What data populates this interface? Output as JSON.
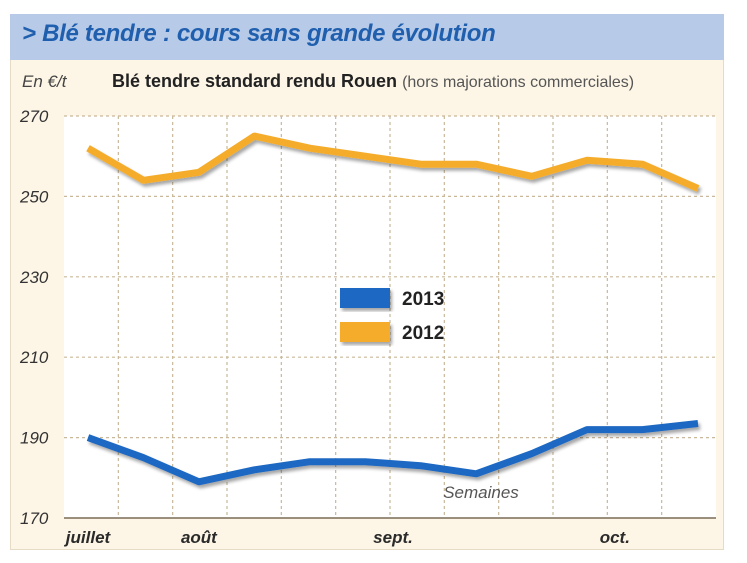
{
  "header": {
    "title": "> Blé tendre : cours sans grande évolution",
    "unit": "En €/t",
    "subtitle": "Blé tendre standard rendu Rouen",
    "subtitle_note": "(hors majorations commerciales)"
  },
  "colors": {
    "title_bar": "#b7cbe9",
    "title_text": "#1f5fae",
    "background": "#fdf6e6",
    "series_2013": "#1f68c2",
    "series_2012": "#f4ac2c"
  },
  "chart_data": {
    "type": "line",
    "ylim": [
      170,
      270
    ],
    "yticks": [
      170,
      190,
      210,
      230,
      250,
      270
    ],
    "xlabel": "Semaines",
    "ylabel": "En €/t",
    "month_labels": [
      "juillet",
      "août",
      "sept.",
      "oct."
    ],
    "month_positions": [
      0,
      2,
      5.5,
      9.5
    ],
    "grid": true,
    "legend_placement": "center",
    "x": [
      0,
      1,
      2,
      3,
      4,
      5,
      6,
      7,
      8,
      9,
      10,
      11
    ],
    "series": [
      {
        "name": "2013",
        "color": "#1f68c2",
        "values": [
          190,
          185,
          179,
          182,
          184,
          184,
          183,
          181,
          186,
          192,
          192,
          193.5
        ]
      },
      {
        "name": "2012",
        "color": "#f4ac2c",
        "values": [
          262,
          254,
          256,
          265,
          262,
          260,
          258,
          258,
          255,
          259,
          258,
          252
        ]
      }
    ]
  }
}
